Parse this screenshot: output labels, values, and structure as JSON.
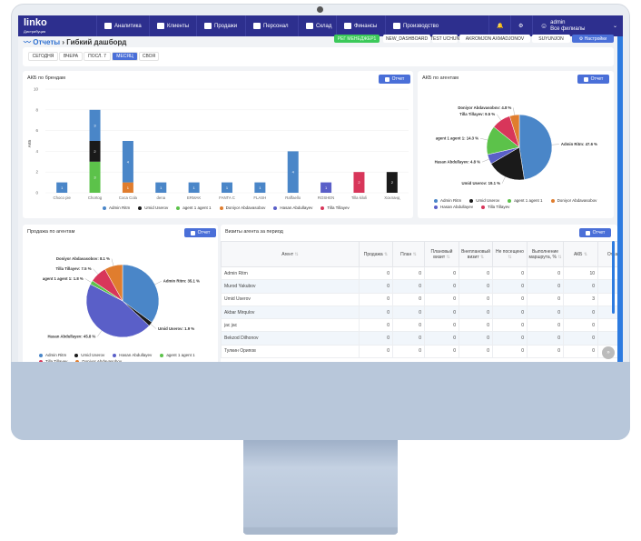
{
  "nav": {
    "logo": "linko",
    "logo_sub": "Дистрибуция",
    "items": [
      "Аналитика",
      "Клиенты",
      "Продажи",
      "Персонал",
      "Склад",
      "Финансы",
      "Производство"
    ],
    "user": "admin",
    "branch": "Все филиалы"
  },
  "breadcrumb": {
    "section": "Отчеты",
    "separator": "›",
    "page": "Гибкий дашборд"
  },
  "presets": [
    "РЕГ МЕНЕДЖЕР1",
    "NEW_DASHBOARD",
    "TEST UCHUN",
    "AKROMJON AXMADJONOV",
    "SUYUNJON"
  ],
  "settings_label": "Настройки",
  "date_filters": [
    "СЕГОДНЯ",
    "ВЧЕРА",
    "ПОСЛ. 7",
    "МЕСЯЦ",
    "СВОЯ"
  ],
  "active_filter": "МЕСЯЦ",
  "report_label": "Отчет",
  "colors": {
    "Admin Ritm": "#4a86c8",
    "Umid Userov": "#1a1a1a",
    "agent 1 agent 1": "#5cc24a",
    "Doniyor Abdavasobov": "#e07d2e",
    "Hasan Abdullayev": "#5a5fc8",
    "Tilla Tillayev": "#d8365a",
    "nav": "#2d2f8e",
    "accent": "#4a6fd8"
  },
  "chart_data": [
    {
      "type": "bar",
      "title": "АКБ по брендам",
      "ylabel": "АКБ",
      "ylim": [
        0,
        10
      ],
      "yticks": [
        0,
        2,
        4,
        6,
        8,
        10
      ],
      "stacked": true,
      "legend": "bottom",
      "categories": [
        "Choco pie",
        "Chortog",
        "Coca Cola",
        "dena",
        "ERMAK",
        "FANTA C",
        "FLASH",
        "Raffaello",
        "ROSHEN",
        "Tilla kiloli",
        "Хохланд"
      ],
      "series": [
        {
          "name": "Admin Ritm",
          "values": [
            1,
            3,
            4,
            1,
            1,
            1,
            1,
            4,
            0,
            0,
            0
          ]
        },
        {
          "name": "Umid Userov",
          "values": [
            0,
            2,
            0,
            0,
            0,
            0,
            0,
            0,
            0,
            0,
            2
          ]
        },
        {
          "name": "agent 1 agent 1",
          "values": [
            0,
            3,
            0,
            0,
            0,
            0,
            0,
            0,
            0,
            0,
            0
          ]
        },
        {
          "name": "Doniyor Abdavasobov",
          "values": [
            0,
            0,
            1,
            0,
            0,
            0,
            0,
            0,
            0,
            0,
            0
          ]
        },
        {
          "name": "Hasan Abdullayev",
          "values": [
            0,
            0,
            0,
            0,
            0,
            0,
            0,
            0,
            1,
            0,
            0
          ]
        },
        {
          "name": "Tilla Tillayev",
          "values": [
            0,
            0,
            0,
            0,
            0,
            0,
            0,
            0,
            0,
            2,
            0
          ]
        }
      ]
    },
    {
      "type": "pie",
      "title": "АКБ по агентам",
      "legend": "bottom",
      "labels": [
        "Admin Ritm",
        "Umid Userov",
        "Hasan Abdullayev",
        "agent 1 agent 1",
        "Tilla Tillayev",
        "Doniyor Abdavasobov"
      ],
      "values": [
        47.6,
        19.1,
        4.8,
        14.3,
        9.5,
        4.8
      ]
    },
    {
      "type": "pie",
      "title": "Продажа по агентам",
      "legend": "bottom",
      "labels": [
        "Admin Ritm",
        "Umid Userov",
        "Hasan Abdullayev",
        "agent 1 agent 1",
        "Tilla Tillayev",
        "Doniyor Abdavasobov"
      ],
      "values": [
        35.1,
        1.9,
        45.8,
        1.8,
        7.5,
        8.1
      ]
    }
  ],
  "table": {
    "title": "Визиты агента за период",
    "columns": [
      "Агент",
      "Продажа",
      "План",
      "Плановый визит",
      "Внеплановый визит",
      "Не посещено",
      "Выполнение маршрута, %",
      "АКБ",
      "Отка"
    ],
    "rows": [
      [
        "Admin Ritm",
        "0",
        "0",
        "0",
        "0",
        "0",
        "0",
        "10"
      ],
      [
        "Murod Yakubov",
        "0",
        "0",
        "0",
        "0",
        "0",
        "0",
        "0"
      ],
      [
        "Umid Userov",
        "0",
        "0",
        "0",
        "0",
        "0",
        "0",
        "3"
      ],
      [
        "Akbar Mirqulov",
        "0",
        "0",
        "0",
        "0",
        "0",
        "0",
        "0"
      ],
      [
        "jac jac",
        "0",
        "0",
        "0",
        "0",
        "0",
        "0",
        "0"
      ],
      [
        "Bekzod Dilhonov",
        "0",
        "0",
        "0",
        "0",
        "0",
        "0",
        "0"
      ],
      [
        "Тулкин Орипов",
        "0",
        "0",
        "0",
        "0",
        "0",
        "0",
        "0"
      ]
    ]
  },
  "scroll_label": "»"
}
